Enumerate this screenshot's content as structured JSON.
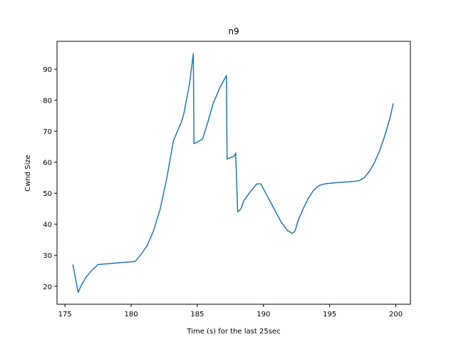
{
  "chart_data": {
    "type": "line",
    "title": "n9",
    "xlabel": "Time (s) for the last 25sec",
    "ylabel": "Cwnd Size",
    "xlim": [
      174.4,
      201.1
    ],
    "ylim": [
      14.2,
      99.0
    ],
    "xticks": [
      175,
      180,
      185,
      190,
      195,
      200
    ],
    "yticks": [
      20,
      30,
      40,
      50,
      60,
      70,
      80,
      90
    ],
    "grid": false,
    "series": [
      {
        "color": "#1f77b4",
        "x": [
          175.6,
          176.0,
          176.2,
          176.6,
          177.0,
          177.5,
          180.3,
          180.7,
          181.2,
          181.7,
          182.2,
          182.7,
          183.2,
          183.8,
          184.0,
          184.4,
          184.7,
          184.75,
          185.0,
          185.2,
          185.4,
          185.8,
          186.2,
          186.7,
          187.2,
          187.25,
          187.5,
          187.8,
          187.9,
          188.05,
          188.3,
          188.5,
          189.0,
          189.5,
          189.8,
          190.3,
          190.8,
          191.3,
          191.8,
          192.2,
          192.4,
          192.6,
          193.0,
          193.4,
          193.8,
          194.2,
          194.6,
          195.5,
          196.5,
          197.2,
          197.6,
          198.0,
          198.4,
          198.8,
          199.2,
          199.6,
          199.8
        ],
        "y": [
          27,
          18,
          20,
          23,
          25,
          27,
          28,
          30,
          33,
          38,
          45,
          55,
          67,
          73,
          76,
          85,
          95,
          66,
          66.5,
          67,
          67.5,
          73,
          79,
          84,
          88,
          61,
          61.5,
          62,
          63,
          44,
          45,
          47.5,
          50.5,
          53,
          53,
          49,
          45,
          41,
          38,
          37,
          38,
          41,
          45,
          48.5,
          51,
          52.5,
          53,
          53.4,
          53.7,
          54,
          55,
          57,
          60,
          64,
          69,
          75,
          79
        ]
      }
    ]
  }
}
